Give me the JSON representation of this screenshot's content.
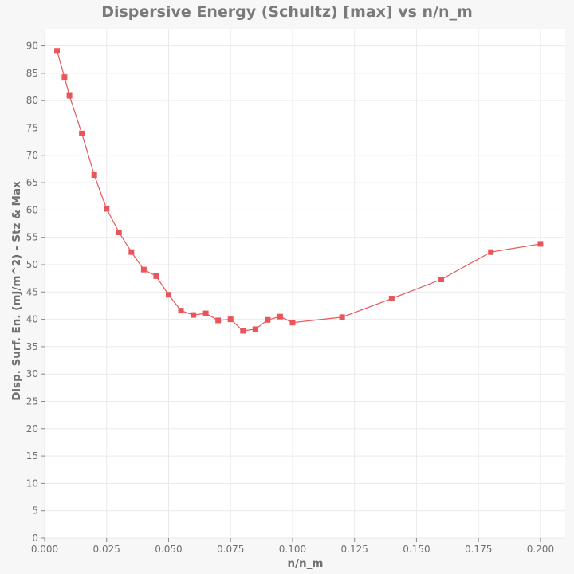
{
  "chart_data": {
    "type": "line",
    "title": "Dispersive Energy (Schultz) [max] vs n/n_m",
    "xlabel": "n/n_m",
    "ylabel": "Disp. Surf. En. (mJ/m^2) - Stz & Max",
    "xlim": [
      0.0,
      0.21
    ],
    "ylim": [
      0,
      93
    ],
    "xticks": [
      0.0,
      0.025,
      0.05,
      0.075,
      0.1,
      0.125,
      0.15,
      0.175,
      0.2
    ],
    "xtick_labels": [
      "0.000",
      "0.025",
      "0.050",
      "0.075",
      "0.100",
      "0.125",
      "0.150",
      "0.175",
      "0.200"
    ],
    "yticks": [
      0,
      5,
      10,
      15,
      20,
      25,
      30,
      35,
      40,
      45,
      50,
      55,
      60,
      65,
      70,
      75,
      80,
      85,
      90
    ],
    "ytick_labels": [
      "0",
      "5",
      "10",
      "15",
      "20",
      "25",
      "30",
      "35",
      "40",
      "45",
      "50",
      "55",
      "60",
      "65",
      "70",
      "75",
      "80",
      "85",
      "90"
    ],
    "grid": true,
    "series": [
      {
        "color": "#e8555a",
        "marker": "square",
        "x": [
          0.005,
          0.008,
          0.01,
          0.015,
          0.02,
          0.025,
          0.03,
          0.035,
          0.04,
          0.045,
          0.05,
          0.055,
          0.06,
          0.065,
          0.07,
          0.075,
          0.08,
          0.085,
          0.09,
          0.095,
          0.1,
          0.12,
          0.14,
          0.16,
          0.18,
          0.2
        ],
        "y": [
          89.1,
          84.3,
          80.9,
          74.0,
          66.4,
          60.2,
          55.9,
          52.3,
          49.1,
          47.9,
          44.5,
          41.6,
          40.8,
          41.1,
          39.8,
          40.0,
          37.9,
          38.2,
          39.9,
          40.5,
          39.4,
          40.4,
          43.8,
          47.3,
          52.3,
          53.8
        ]
      }
    ]
  }
}
